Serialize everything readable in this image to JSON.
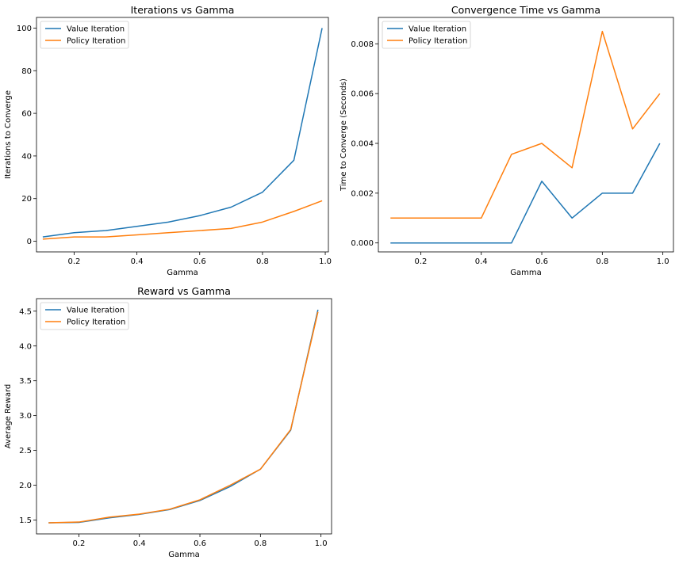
{
  "chart_data": [
    {
      "type": "line",
      "title": "Iterations vs Gamma",
      "xlabel": "Gamma",
      "ylabel": "Iterations to Converge",
      "xlim": [
        0.08,
        1.01
      ],
      "ylim": [
        -5,
        105
      ],
      "xticks": [
        0.2,
        0.4,
        0.6,
        0.8,
        1.0
      ],
      "xtick_labels": [
        "0.2",
        "0.4",
        "0.6",
        "0.8",
        "1.0"
      ],
      "yticks": [
        0,
        20,
        40,
        60,
        80,
        100
      ],
      "ytick_labels": [
        "0",
        "20",
        "40",
        "60",
        "80",
        "100"
      ],
      "grid": false,
      "legend": "upper-left",
      "x": [
        0.1,
        0.2,
        0.3,
        0.4,
        0.5,
        0.6,
        0.7,
        0.8,
        0.9,
        0.99
      ],
      "series": [
        {
          "name": "Value Iteration",
          "color": "#1f77b4",
          "values": [
            2,
            4,
            5,
            7,
            9,
            12,
            16,
            23,
            38,
            100
          ]
        },
        {
          "name": "Policy Iteration",
          "color": "#ff7f0e",
          "values": [
            1,
            2,
            2,
            3,
            4,
            5,
            6,
            9,
            14,
            19
          ]
        }
      ]
    },
    {
      "type": "line",
      "title": "Convergence Time vs Gamma",
      "xlabel": "Gamma",
      "ylabel": "Time to Converge (Seconds)",
      "xlim": [
        0.06,
        1.035
      ],
      "ylim": [
        -0.00036,
        0.00906
      ],
      "xticks": [
        0.2,
        0.4,
        0.6,
        0.8,
        1.0
      ],
      "xtick_labels": [
        "0.2",
        "0.4",
        "0.6",
        "0.8",
        "1.0"
      ],
      "yticks": [
        0,
        0.002,
        0.004,
        0.006,
        0.008
      ],
      "ytick_labels": [
        "0.000",
        "0.002",
        "0.004",
        "0.006",
        "0.008"
      ],
      "grid": false,
      "legend": "upper-left",
      "x": [
        0.1,
        0.2,
        0.3,
        0.4,
        0.5,
        0.6,
        0.7,
        0.8,
        0.9,
        0.99
      ],
      "series": [
        {
          "name": "Value Iteration",
          "color": "#1f77b4",
          "values": [
            0,
            0,
            0,
            0,
            0,
            0.00248,
            0.001,
            0.002,
            0.002,
            0.004
          ]
        },
        {
          "name": "Policy Iteration",
          "color": "#ff7f0e",
          "values": [
            0.001,
            0.001,
            0.001,
            0.001,
            0.00356,
            0.004,
            0.00302,
            0.0085,
            0.00458,
            0.006
          ]
        }
      ]
    },
    {
      "type": "line",
      "title": "Reward vs Gamma",
      "xlabel": "Gamma",
      "ylabel": "Average Reward",
      "xlim": [
        0.06,
        1.035
      ],
      "ylim": [
        1.3,
        4.68
      ],
      "xticks": [
        0.2,
        0.4,
        0.6,
        0.8,
        1.0
      ],
      "xtick_labels": [
        "0.2",
        "0.4",
        "0.6",
        "0.8",
        "1.0"
      ],
      "yticks": [
        1.5,
        2.0,
        2.5,
        3.0,
        3.5,
        4.0,
        4.5
      ],
      "ytick_labels": [
        "1.5",
        "2.0",
        "2.5",
        "3.0",
        "3.5",
        "4.0",
        "4.5"
      ],
      "grid": false,
      "legend": "upper-left",
      "x": [
        0.1,
        0.2,
        0.3,
        0.4,
        0.5,
        0.6,
        0.7,
        0.8,
        0.9,
        0.99
      ],
      "series": [
        {
          "name": "Value Iteration",
          "color": "#1f77b4",
          "values": [
            1.46,
            1.465,
            1.53,
            1.58,
            1.65,
            1.78,
            1.98,
            2.23,
            2.79,
            4.52
          ]
        },
        {
          "name": "Policy Iteration",
          "color": "#ff7f0e",
          "values": [
            1.46,
            1.47,
            1.54,
            1.585,
            1.655,
            1.79,
            2.0,
            2.23,
            2.8,
            4.49
          ]
        }
      ]
    }
  ]
}
